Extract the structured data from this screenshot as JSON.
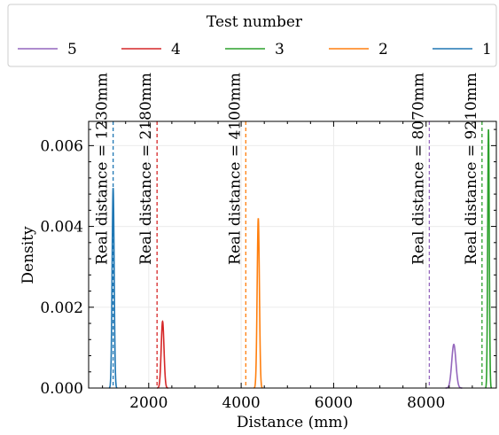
{
  "chart_data": {
    "type": "line",
    "title": "",
    "xlabel": "Distance (mm)",
    "ylabel": "Density",
    "xlim": [
      700,
      9520
    ],
    "ylim": [
      0,
      0.0066
    ],
    "xticks": [
      2000,
      4000,
      6000,
      8000
    ],
    "xtick_labels": [
      "2000",
      "4000",
      "6000",
      "8000"
    ],
    "yticks": [
      0,
      0.002,
      0.004,
      0.006
    ],
    "ytick_labels": [
      "0.000",
      "0.002",
      "0.004",
      "0.006"
    ],
    "grid": true,
    "legend": {
      "title": "Test number",
      "placement": "top",
      "entries": [
        "5",
        "4",
        "3",
        "2",
        "1"
      ]
    },
    "colors": {
      "1": "#1f77b4",
      "2": "#ff7f0e",
      "3": "#2ca02c",
      "4": "#d62728",
      "5": "#9467bd"
    },
    "series": [
      {
        "name": "1",
        "mean": 1230,
        "sd": 22,
        "peak": 0.00495
      },
      {
        "name": "2",
        "mean": 4370,
        "sd": 24,
        "peak": 0.0042
      },
      {
        "name": "3",
        "mean": 9350,
        "sd": 17,
        "peak": 0.0064
      },
      {
        "name": "4",
        "mean": 2300,
        "sd": 30,
        "peak": 0.00165
      },
      {
        "name": "5",
        "mean": 8600,
        "sd": 45,
        "peak": 0.00108
      }
    ],
    "reference_lines": [
      {
        "test": "1",
        "x": 1230,
        "label": "Real distance = 1230mm"
      },
      {
        "test": "4",
        "x": 2180,
        "label": "Real distance = 2180mm"
      },
      {
        "test": "2",
        "x": 4100,
        "label": "Real distance = 4100mm"
      },
      {
        "test": "5",
        "x": 8070,
        "label": "Real distance = 8070mm"
      },
      {
        "test": "3",
        "x": 9210,
        "label": "Real distance = 9210mm"
      }
    ]
  }
}
